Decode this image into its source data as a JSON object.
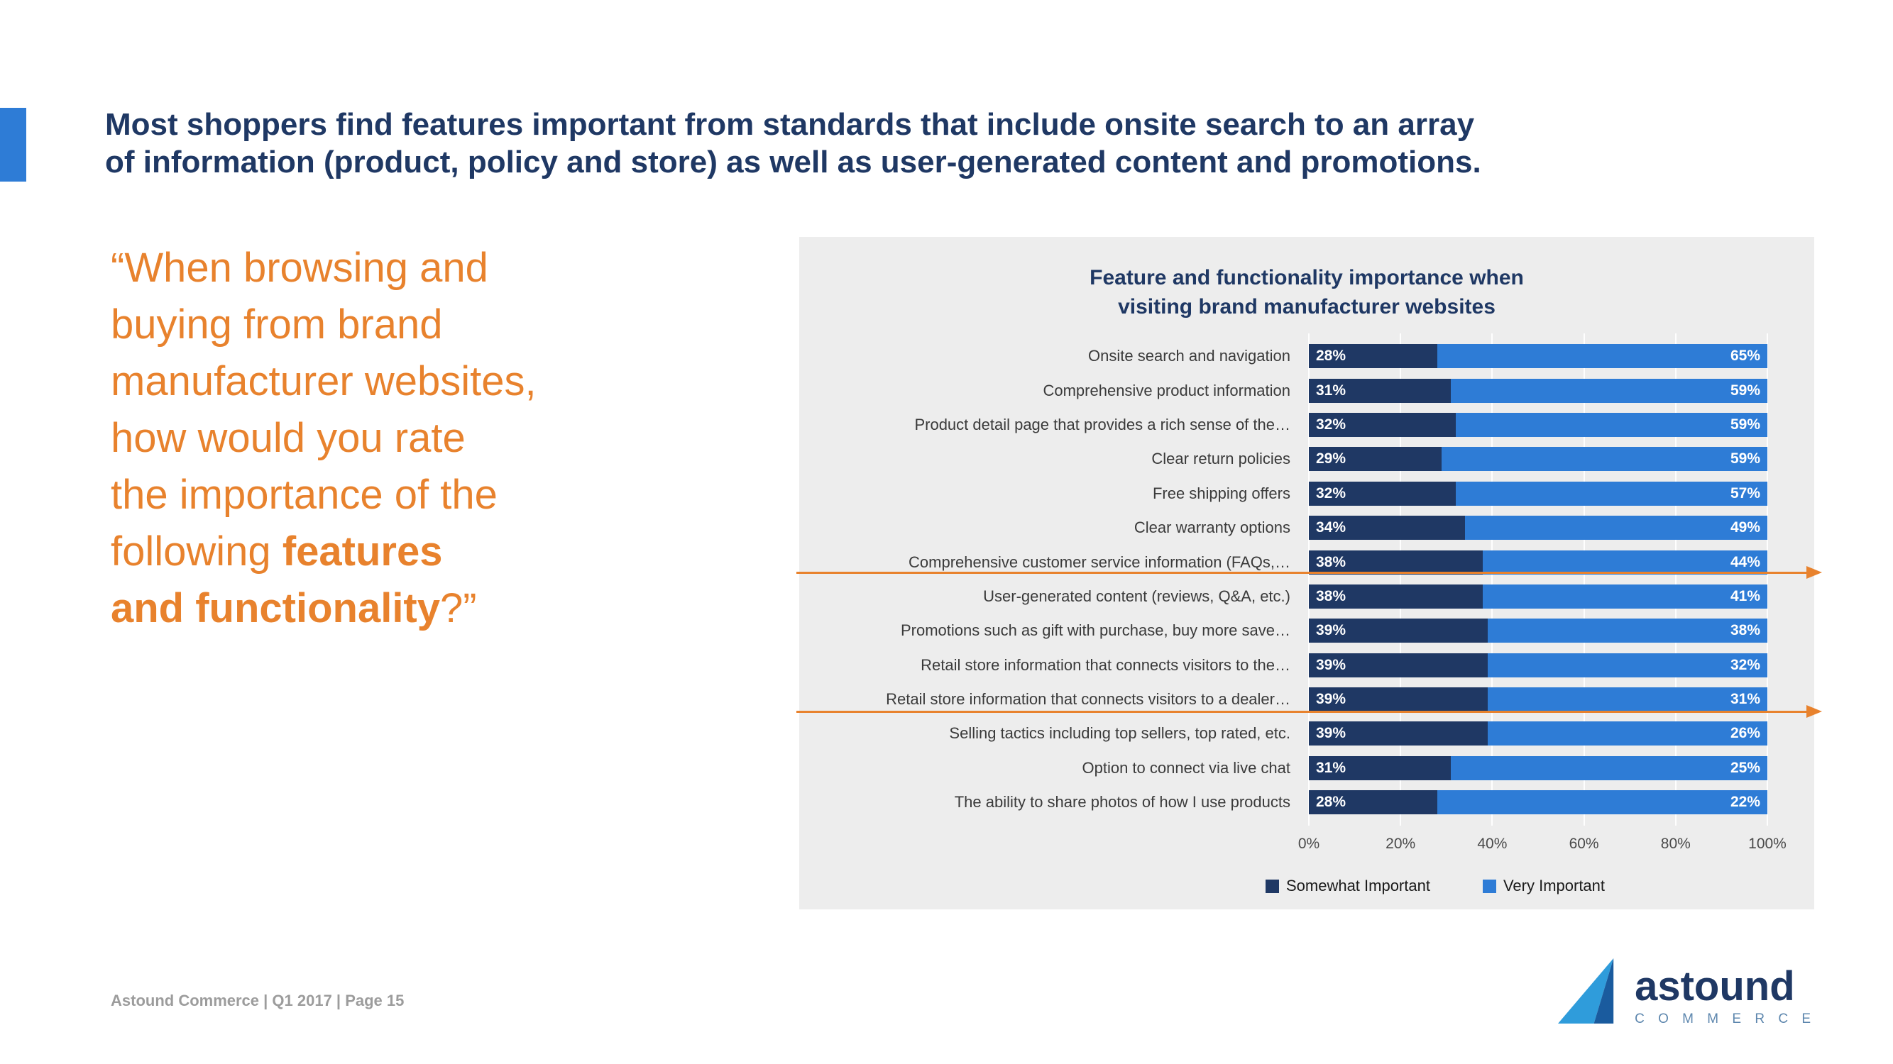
{
  "slide": {
    "header_title": "Most shoppers find features important from standards that include onsite search to an array\nof information (product, policy and store) as well as user-generated content and promotions.",
    "quote": {
      "prefix": "“When browsing and\nbuying from brand\nmanufacturer websites,\nhow would you rate\nthe importance of the\nfollowing ",
      "bold": "features\nand functionality",
      "suffix": "?”"
    },
    "footer_text": "Astound Commerce | Q1 2017 | Page 15",
    "logo": {
      "brand": "astound",
      "subbrand": "C O M M E R C E"
    },
    "colors": {
      "accent_blue": "#2E7CD6",
      "navy": "#1F3864",
      "orange": "#E8822D",
      "panel_gray": "#EDEDED"
    }
  },
  "chart_data": {
    "type": "bar",
    "orientation": "horizontal",
    "stacked": true,
    "title": "Feature and functionality importance when\nvisiting brand manufacturer websites",
    "categories": [
      "Onsite search and navigation",
      "Comprehensive product information",
      "Product detail page that provides a rich sense of the…",
      "Clear return policies",
      "Free shipping offers",
      "Clear warranty options",
      "Comprehensive customer service information (FAQs,…",
      "User-generated content (reviews, Q&A, etc.)",
      "Promotions such as gift with purchase, buy more save…",
      "Retail store information that connects visitors to the…",
      "Retail store information that connects visitors to a dealer…",
      "Selling tactics including top sellers, top rated, etc.",
      "Option to connect via live chat",
      "The ability to share photos of how I use products"
    ],
    "series": [
      {
        "name": "Somewhat Important",
        "color": "#1F3864",
        "values": [
          28,
          31,
          32,
          29,
          32,
          34,
          38,
          38,
          39,
          39,
          39,
          39,
          31,
          28
        ]
      },
      {
        "name": "Very Important",
        "color": "#2E7CD6",
        "values": [
          65,
          59,
          59,
          59,
          57,
          49,
          44,
          41,
          38,
          32,
          31,
          26,
          25,
          22
        ]
      }
    ],
    "x_ticks": [
      "0%",
      "20%",
      "40%",
      "60%",
      "80%",
      "100%"
    ],
    "xlim": [
      0,
      100
    ],
    "grid": true,
    "legend_position": "bottom",
    "bar_style_note": "Very Important segment drawn filling bar remainder to 100%, value labeled at right end",
    "annotations": [
      {
        "type": "horizontal-arrow",
        "after_category_index": 6,
        "color": "#E8822D"
      },
      {
        "type": "horizontal-arrow",
        "after_category_index": 10,
        "color": "#E8822D"
      }
    ]
  }
}
